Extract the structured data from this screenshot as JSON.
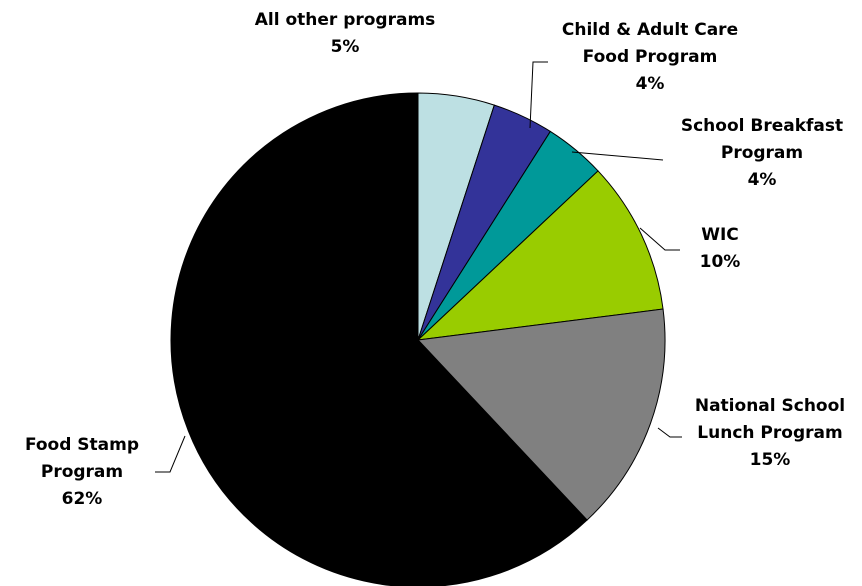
{
  "chart_data": {
    "type": "pie",
    "start_angle_deg": 0,
    "direction": "clockwise",
    "slices": [
      {
        "name": "All other programs",
        "label_lines": [
          "All other programs"
        ],
        "pct_label": "5%",
        "value": 5,
        "color": "#bde0e3"
      },
      {
        "name": "Child & Adult Care Food Program",
        "label_lines": [
          "Child & Adult Care",
          "Food Program"
        ],
        "pct_label": "4%",
        "value": 4,
        "color": "#333399"
      },
      {
        "name": "School Breakfast Program",
        "label_lines": [
          "School Breakfast",
          "Program"
        ],
        "pct_label": "4%",
        "value": 4,
        "color": "#009999"
      },
      {
        "name": "WIC",
        "label_lines": [
          "WIC"
        ],
        "pct_label": "10%",
        "value": 10,
        "color": "#99cc00"
      },
      {
        "name": "National School Lunch Program",
        "label_lines": [
          "National School",
          "Lunch Program"
        ],
        "pct_label": "15%",
        "value": 15,
        "color": "#808080"
      },
      {
        "name": "Food Stamp Program",
        "label_lines": [
          "Food Stamp",
          "Program"
        ],
        "pct_label": "62%",
        "value": 62,
        "color": "#000000"
      }
    ]
  }
}
